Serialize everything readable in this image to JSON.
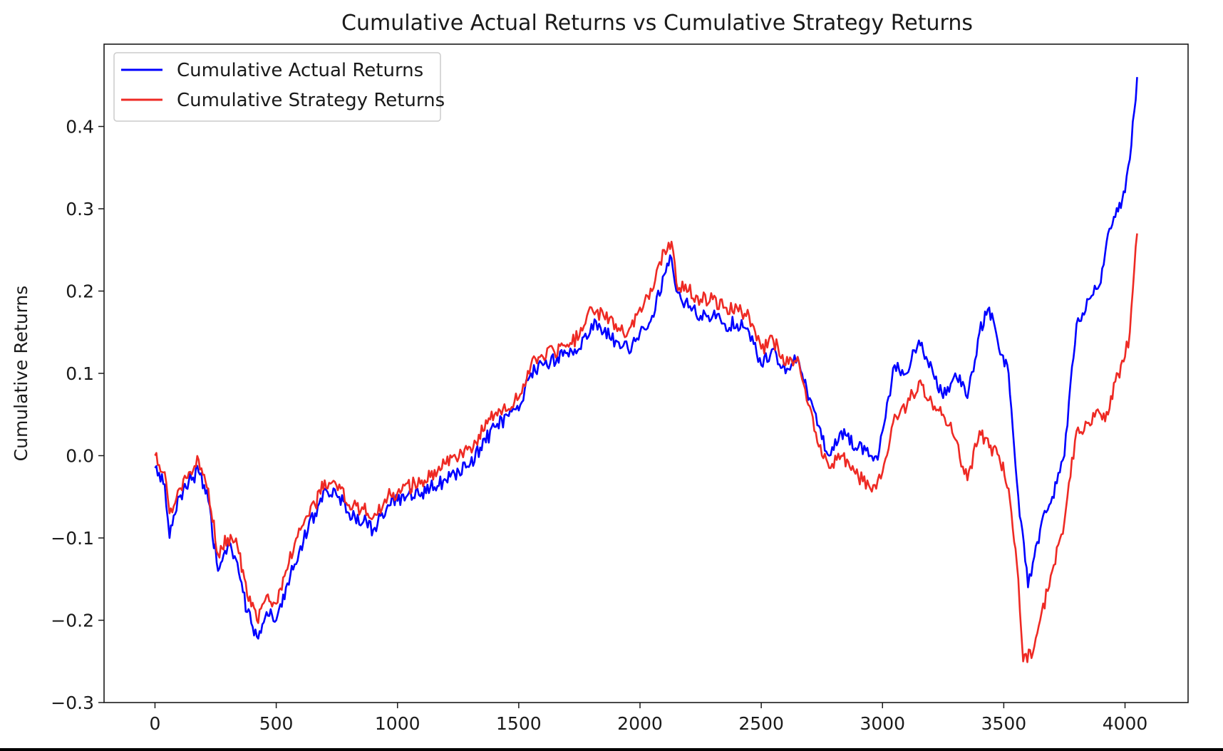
{
  "chart_data": {
    "type": "line",
    "title": "Cumulative Actual Returns vs Cumulative Strategy Returns",
    "xlabel": "",
    "ylabel": "Cumulative Returns",
    "xlim": [
      -210,
      4260
    ],
    "ylim": [
      -0.3,
      0.5
    ],
    "x_ticks": [
      0,
      500,
      1000,
      1500,
      2000,
      2500,
      3000,
      3500,
      4000
    ],
    "x_tick_labels": [
      "0",
      "500",
      "1000",
      "1500",
      "2000",
      "2500",
      "3000",
      "3500",
      "4000"
    ],
    "y_ticks": [
      -0.3,
      -0.2,
      -0.1,
      0.0,
      0.1,
      0.2,
      0.3,
      0.4
    ],
    "y_tick_labels": [
      "−0.3",
      "−0.2",
      "−0.1",
      "0.0",
      "0.1",
      "0.2",
      "0.3",
      "0.4"
    ],
    "grid": false,
    "legend_position": "top-left",
    "series": [
      {
        "name": "Cumulative Actual Returns",
        "color": "#0000ff",
        "x": [
          0,
          40,
          60,
          100,
          140,
          180,
          220,
          260,
          300,
          340,
          380,
          420,
          460,
          500,
          540,
          600,
          660,
          700,
          760,
          800,
          860,
          900,
          960,
          1000,
          1100,
          1200,
          1300,
          1400,
          1500,
          1550,
          1600,
          1700,
          1750,
          1800,
          1850,
          1900,
          1950,
          2000,
          2050,
          2100,
          2130,
          2150,
          2200,
          2250,
          2300,
          2350,
          2400,
          2450,
          2500,
          2550,
          2600,
          2650,
          2700,
          2750,
          2780,
          2830,
          2900,
          2950,
          2980,
          3000,
          3050,
          3100,
          3150,
          3180,
          3250,
          3300,
          3350,
          3400,
          3440,
          3480,
          3520,
          3560,
          3600,
          3620,
          3650,
          3700,
          3750,
          3800,
          3850,
          3900,
          3930,
          3960,
          4000,
          4020,
          4050
        ],
        "y": [
          -0.015,
          -0.035,
          -0.1,
          -0.05,
          -0.03,
          -0.02,
          -0.055,
          -0.14,
          -0.11,
          -0.13,
          -0.19,
          -0.22,
          -0.19,
          -0.2,
          -0.16,
          -0.11,
          -0.07,
          -0.04,
          -0.05,
          -0.07,
          -0.08,
          -0.09,
          -0.06,
          -0.055,
          -0.045,
          -0.03,
          -0.01,
          0.035,
          0.055,
          0.1,
          0.11,
          0.125,
          0.13,
          0.16,
          0.15,
          0.14,
          0.13,
          0.15,
          0.17,
          0.22,
          0.24,
          0.2,
          0.18,
          0.17,
          0.17,
          0.16,
          0.16,
          0.15,
          0.11,
          0.13,
          0.1,
          0.12,
          0.07,
          0.02,
          0.0,
          0.03,
          0.01,
          0.0,
          -0.005,
          0.03,
          0.11,
          0.1,
          0.14,
          0.12,
          0.07,
          0.1,
          0.07,
          0.15,
          0.18,
          0.13,
          0.1,
          -0.05,
          -0.16,
          -0.13,
          -0.09,
          -0.05,
          0.0,
          0.16,
          0.19,
          0.21,
          0.27,
          0.29,
          0.32,
          0.36,
          0.46
        ]
      },
      {
        "name": "Cumulative Strategy Returns",
        "color": "#ee2a24",
        "x": [
          0,
          40,
          60,
          100,
          140,
          180,
          220,
          260,
          300,
          340,
          380,
          420,
          460,
          500,
          540,
          600,
          660,
          700,
          760,
          800,
          860,
          900,
          960,
          1000,
          1100,
          1200,
          1300,
          1400,
          1500,
          1550,
          1600,
          1700,
          1750,
          1800,
          1850,
          1900,
          1950,
          2000,
          2050,
          2100,
          2130,
          2150,
          2200,
          2250,
          2300,
          2350,
          2400,
          2450,
          2500,
          2550,
          2600,
          2650,
          2700,
          2750,
          2780,
          2830,
          2900,
          2950,
          2980,
          3000,
          3050,
          3100,
          3150,
          3180,
          3250,
          3300,
          3350,
          3400,
          3440,
          3480,
          3520,
          3560,
          3580,
          3620,
          3650,
          3700,
          3750,
          3800,
          3850,
          3900,
          3930,
          3960,
          4000,
          4020,
          4050
        ],
        "y": [
          0.0,
          -0.02,
          -0.07,
          -0.04,
          -0.02,
          -0.005,
          -0.04,
          -0.12,
          -0.1,
          -0.11,
          -0.17,
          -0.2,
          -0.17,
          -0.18,
          -0.14,
          -0.09,
          -0.06,
          -0.03,
          -0.035,
          -0.06,
          -0.065,
          -0.075,
          -0.05,
          -0.045,
          -0.03,
          -0.01,
          0.01,
          0.05,
          0.07,
          0.11,
          0.12,
          0.135,
          0.145,
          0.18,
          0.17,
          0.16,
          0.15,
          0.18,
          0.2,
          0.25,
          0.26,
          0.21,
          0.2,
          0.19,
          0.19,
          0.18,
          0.18,
          0.17,
          0.13,
          0.14,
          0.11,
          0.12,
          0.06,
          0.0,
          -0.015,
          0.0,
          -0.025,
          -0.04,
          -0.03,
          -0.02,
          0.05,
          0.06,
          0.09,
          0.07,
          0.05,
          0.02,
          -0.03,
          0.03,
          0.01,
          0.0,
          -0.04,
          -0.15,
          -0.25,
          -0.24,
          -0.2,
          -0.14,
          -0.08,
          0.03,
          0.04,
          0.05,
          0.05,
          0.09,
          0.12,
          0.15,
          0.27
        ]
      }
    ]
  }
}
